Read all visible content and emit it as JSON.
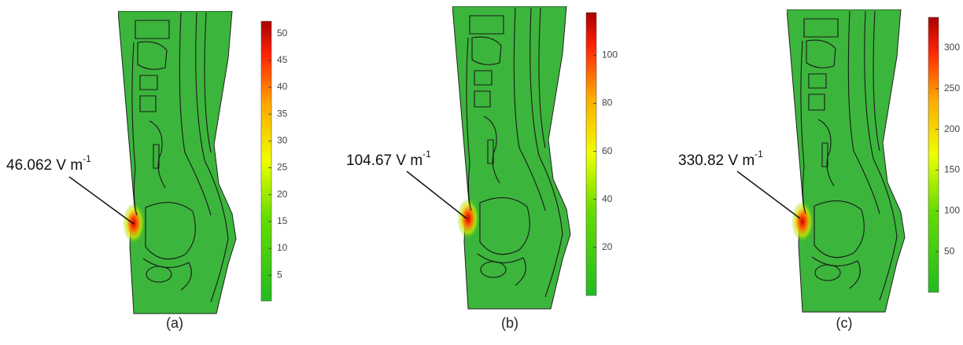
{
  "panels": [
    {
      "caption": "(a)",
      "annotation": {
        "label": "46.062 V m",
        "sup": "-1"
      },
      "colorbar": {
        "range": [
          0.2,
          52.3
        ],
        "ticks": [
          5,
          10,
          15,
          20,
          25,
          30,
          35,
          40,
          45,
          50
        ]
      }
    },
    {
      "caption": "(b)",
      "annotation": {
        "label": "104.67 V m",
        "sup": "-1"
      },
      "colorbar": {
        "range": [
          0,
          117.8
        ],
        "ticks": [
          20,
          40,
          60,
          80,
          100
        ]
      }
    },
    {
      "caption": "(c)",
      "annotation": {
        "label": "330.82 V m",
        "sup": "-1"
      },
      "colorbar": {
        "range": [
          0,
          337.6
        ],
        "ticks": [
          50,
          100,
          150,
          200,
          250,
          300
        ]
      }
    }
  ]
}
